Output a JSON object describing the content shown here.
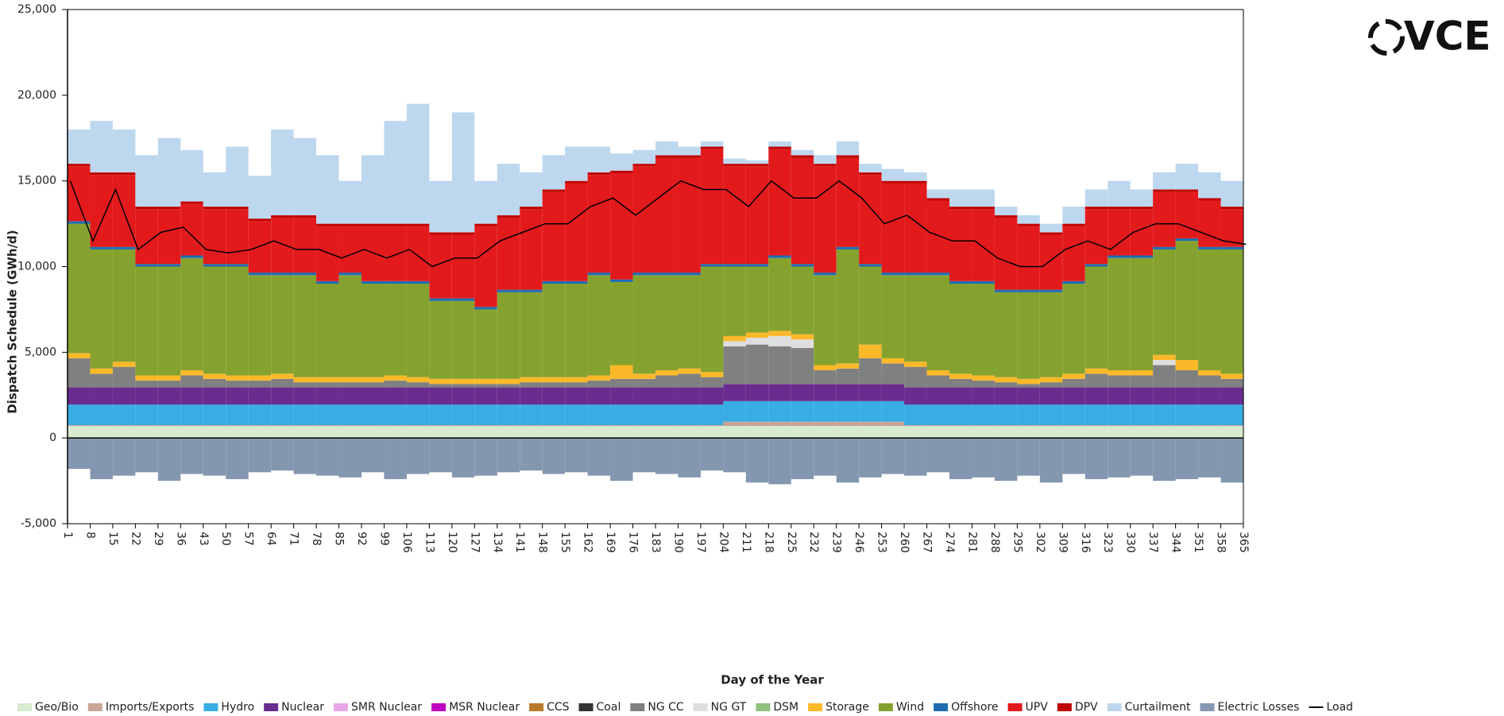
{
  "chart_data": {
    "type": "stacked_bar",
    "xlabel": "Day of the Year",
    "ylabel": "Dispatch Schedule (GWh/d)",
    "logo": "VCE",
    "x": [
      1,
      8,
      15,
      22,
      29,
      36,
      43,
      50,
      57,
      64,
      71,
      78,
      85,
      92,
      99,
      106,
      113,
      120,
      127,
      134,
      141,
      148,
      155,
      162,
      169,
      176,
      183,
      190,
      197,
      204,
      211,
      218,
      225,
      232,
      239,
      246,
      253,
      260,
      267,
      274,
      281,
      288,
      295,
      302,
      309,
      316,
      323,
      330,
      337,
      344,
      351,
      358,
      365
    ],
    "xlim": [
      1,
      365
    ],
    "xticks": [
      1,
      8,
      15,
      22,
      29,
      36,
      43,
      50,
      57,
      64,
      71,
      78,
      85,
      92,
      99,
      106,
      113,
      120,
      127,
      134,
      141,
      148,
      155,
      162,
      169,
      176,
      183,
      190,
      197,
      204,
      211,
      218,
      225,
      232,
      239,
      246,
      253,
      260,
      267,
      274,
      281,
      288,
      295,
      302,
      309,
      316,
      323,
      330,
      337,
      344,
      351,
      358,
      365
    ],
    "ylim": [
      -5000,
      25000
    ],
    "yticks": [
      {
        "value": -5000,
        "label": "-5,000"
      },
      0,
      {
        "value": 5000,
        "label": "5,000"
      },
      {
        "value": 10000,
        "label": "10,000"
      },
      {
        "value": 15000,
        "label": "15,000"
      },
      {
        "value": 20000,
        "label": "20,000"
      },
      {
        "value": 25000,
        "label": "25,000"
      }
    ],
    "series": [
      {
        "name": "Geo/Bio",
        "color": "#d6ebcf",
        "values": [
          700,
          700,
          700,
          700,
          700,
          700,
          700,
          700,
          700,
          700,
          700,
          700,
          700,
          700,
          700,
          700,
          700,
          700,
          700,
          700,
          700,
          700,
          700,
          700,
          700,
          700,
          700,
          700,
          700,
          700,
          700,
          700,
          700,
          700,
          700,
          700,
          700,
          700,
          700,
          700,
          700,
          700,
          700,
          700,
          700,
          700,
          700,
          700,
          700,
          700,
          700,
          700,
          700
        ]
      },
      {
        "name": "Imports/Exports",
        "color": "#c8a596",
        "values": [
          50,
          50,
          50,
          50,
          50,
          50,
          50,
          50,
          50,
          50,
          50,
          50,
          50,
          50,
          50,
          50,
          50,
          50,
          50,
          50,
          50,
          50,
          50,
          50,
          50,
          50,
          50,
          50,
          50,
          250,
          250,
          250,
          250,
          250,
          250,
          250,
          250,
          50,
          50,
          50,
          50,
          50,
          50,
          50,
          50,
          50,
          50,
          50,
          50,
          50,
          50,
          50,
          50
        ]
      },
      {
        "name": "Hydro",
        "color": "#38ace3",
        "values": [
          1200,
          1200,
          1200,
          1200,
          1200,
          1200,
          1200,
          1200,
          1200,
          1200,
          1200,
          1200,
          1200,
          1200,
          1200,
          1200,
          1200,
          1200,
          1200,
          1200,
          1200,
          1200,
          1200,
          1200,
          1200,
          1200,
          1200,
          1200,
          1200,
          1200,
          1200,
          1200,
          1200,
          1200,
          1200,
          1200,
          1200,
          1200,
          1200,
          1200,
          1200,
          1200,
          1200,
          1200,
          1200,
          1200,
          1200,
          1200,
          1200,
          1200,
          1200,
          1200,
          1200
        ]
      },
      {
        "name": "Nuclear",
        "color": "#6a2d8f",
        "values": [
          1000,
          1000,
          1000,
          1000,
          1000,
          1000,
          1000,
          1000,
          1000,
          1000,
          1000,
          1000,
          1000,
          1000,
          1000,
          1000,
          1000,
          1000,
          1000,
          1000,
          1000,
          1000,
          1000,
          1000,
          1000,
          1000,
          1000,
          1000,
          1000,
          1000,
          1000,
          1000,
          1000,
          1000,
          1000,
          1000,
          1000,
          1000,
          1000,
          1000,
          1000,
          1000,
          1000,
          1000,
          1000,
          1000,
          1000,
          1000,
          1000,
          1000,
          1000,
          1000,
          1000
        ]
      },
      {
        "name": "SMR Nuclear",
        "color": "#e8a8e8",
        "values": [
          0,
          0,
          0,
          0,
          0,
          0,
          0,
          0,
          0,
          0,
          0,
          0,
          0,
          0,
          0,
          0,
          0,
          0,
          0,
          0,
          0,
          0,
          0,
          0,
          0,
          0,
          0,
          0,
          0,
          0,
          0,
          0,
          0,
          0,
          0,
          0,
          0,
          0,
          0,
          0,
          0,
          0,
          0,
          0,
          0,
          0,
          0,
          0,
          0,
          0,
          0,
          0,
          0
        ]
      },
      {
        "name": "MSR Nuclear",
        "color": "#c000c0",
        "values": [
          0,
          0,
          0,
          0,
          0,
          0,
          0,
          0,
          0,
          0,
          0,
          0,
          0,
          0,
          0,
          0,
          0,
          0,
          0,
          0,
          0,
          0,
          0,
          0,
          0,
          0,
          0,
          0,
          0,
          0,
          0,
          0,
          0,
          0,
          0,
          0,
          0,
          0,
          0,
          0,
          0,
          0,
          0,
          0,
          0,
          0,
          0,
          0,
          0,
          0,
          0,
          0,
          0
        ]
      },
      {
        "name": "CCS",
        "color": "#b8792a",
        "values": [
          0,
          0,
          0,
          0,
          0,
          0,
          0,
          0,
          0,
          0,
          0,
          0,
          0,
          0,
          0,
          0,
          0,
          0,
          0,
          0,
          0,
          0,
          0,
          0,
          0,
          0,
          0,
          0,
          0,
          0,
          0,
          0,
          0,
          0,
          0,
          0,
          0,
          0,
          0,
          0,
          0,
          0,
          0,
          0,
          0,
          0,
          0,
          0,
          0,
          0,
          0,
          0,
          0
        ]
      },
      {
        "name": "Coal",
        "color": "#333333",
        "values": [
          0,
          0,
          0,
          0,
          0,
          0,
          0,
          0,
          0,
          0,
          0,
          0,
          0,
          0,
          0,
          0,
          0,
          0,
          0,
          0,
          0,
          0,
          0,
          0,
          0,
          0,
          0,
          0,
          0,
          0,
          0,
          0,
          0,
          0,
          0,
          0,
          0,
          0,
          0,
          0,
          0,
          0,
          0,
          0,
          0,
          0,
          0,
          0,
          0,
          0,
          0,
          0,
          0
        ]
      },
      {
        "name": "NG CC",
        "color": "#808080",
        "values": [
          1700,
          800,
          1200,
          400,
          400,
          700,
          500,
          400,
          400,
          500,
          300,
          300,
          300,
          300,
          400,
          300,
          200,
          200,
          200,
          200,
          300,
          300,
          300,
          400,
          500,
          500,
          700,
          800,
          600,
          2200,
          2300,
          2200,
          2100,
          800,
          900,
          1500,
          1200,
          1200,
          700,
          500,
          400,
          300,
          200,
          300,
          500,
          800,
          700,
          700,
          1300,
          1000,
          700,
          500,
          300
        ]
      },
      {
        "name": "NG GT",
        "color": "#dedede",
        "values": [
          0,
          0,
          0,
          0,
          0,
          0,
          0,
          0,
          0,
          0,
          0,
          0,
          0,
          0,
          0,
          0,
          0,
          0,
          0,
          0,
          0,
          0,
          0,
          0,
          0,
          0,
          0,
          0,
          0,
          300,
          400,
          600,
          500,
          0,
          0,
          0,
          0,
          0,
          0,
          0,
          0,
          0,
          0,
          0,
          0,
          0,
          0,
          0,
          300,
          0,
          0,
          0,
          0
        ]
      },
      {
        "name": "DSM",
        "color": "#8fc07f",
        "values": [
          0,
          0,
          0,
          0,
          0,
          0,
          0,
          0,
          0,
          0,
          0,
          0,
          0,
          0,
          0,
          0,
          0,
          0,
          0,
          0,
          0,
          0,
          0,
          0,
          0,
          0,
          0,
          0,
          0,
          0,
          0,
          0,
          0,
          0,
          0,
          0,
          0,
          0,
          0,
          0,
          0,
          0,
          0,
          0,
          0,
          0,
          0,
          0,
          0,
          0,
          0,
          0,
          0
        ]
      },
      {
        "name": "Storage",
        "color": "#fbb829",
        "values": [
          300,
          300,
          300,
          300,
          300,
          300,
          300,
          300,
          300,
          300,
          300,
          300,
          300,
          300,
          300,
          300,
          300,
          300,
          300,
          300,
          300,
          300,
          300,
          300,
          800,
          300,
          300,
          300,
          300,
          300,
          300,
          300,
          300,
          300,
          300,
          800,
          300,
          300,
          300,
          300,
          300,
          300,
          300,
          300,
          300,
          300,
          300,
          300,
          300,
          600,
          300,
          300,
          300
        ]
      },
      {
        "name": "Wind",
        "color": "#86a22e",
        "values": [
          7550,
          6950,
          6550,
          6350,
          6350,
          6550,
          6250,
          6350,
          5850,
          5750,
          5950,
          5450,
          5950,
          5450,
          5350,
          5450,
          4550,
          4550,
          4050,
          5050,
          4950,
          5450,
          5450,
          5850,
          4850,
          5750,
          5550,
          5450,
          6150,
          4050,
          3850,
          4250,
          3950,
          5250,
          6650,
          4550,
          4850,
          5050,
          5550,
          5250,
          5350,
          4950,
          5050,
          4950,
          5250,
          5950,
          6550,
          6550,
          6150,
          6950,
          7050,
          7250,
          7950
        ]
      },
      {
        "name": "Offshore",
        "color": "#1f6db0",
        "values": [
          150,
          150,
          150,
          150,
          150,
          150,
          150,
          150,
          150,
          150,
          150,
          150,
          150,
          150,
          150,
          150,
          150,
          150,
          150,
          150,
          150,
          150,
          150,
          150,
          150,
          150,
          150,
          150,
          150,
          150,
          150,
          150,
          150,
          150,
          150,
          150,
          150,
          150,
          150,
          150,
          150,
          150,
          150,
          150,
          150,
          150,
          150,
          150,
          150,
          150,
          150,
          150,
          150
        ]
      },
      {
        "name": "UPV",
        "color": "#e31a1c",
        "values": [
          3200,
          4200,
          4200,
          3200,
          3200,
          3000,
          3200,
          3200,
          3000,
          3200,
          3200,
          3200,
          2700,
          3200,
          3200,
          3200,
          3700,
          3700,
          4700,
          4200,
          4700,
          5200,
          5700,
          5700,
          6200,
          6200,
          6700,
          6700,
          6700,
          5700,
          5700,
          6200,
          6200,
          6200,
          5200,
          5200,
          5200,
          5200,
          4200,
          4200,
          4200,
          4200,
          3700,
          3200,
          3200,
          3200,
          2700,
          2700,
          3200,
          2700,
          2700,
          2200,
          2700
        ]
      },
      {
        "name": "DPV",
        "color": "#c00000",
        "values": [
          150,
          150,
          150,
          150,
          150,
          150,
          150,
          150,
          150,
          150,
          150,
          150,
          150,
          150,
          150,
          150,
          150,
          150,
          150,
          150,
          150,
          150,
          150,
          150,
          150,
          150,
          150,
          150,
          150,
          150,
          150,
          150,
          150,
          150,
          150,
          150,
          150,
          150,
          150,
          150,
          150,
          150,
          150,
          150,
          150,
          150,
          150,
          150,
          150,
          150,
          150,
          150,
          150
        ]
      },
      {
        "name": "Curtailment",
        "color": "#bdd7ee",
        "values": [
          2000,
          3000,
          2500,
          3000,
          4000,
          3000,
          2000,
          3500,
          2500,
          5000,
          4500,
          4000,
          2500,
          4000,
          6000,
          7000,
          3000,
          7000,
          2500,
          3000,
          2000,
          2000,
          2000,
          1500,
          1000,
          800,
          800,
          500,
          300,
          300,
          200,
          300,
          300,
          500,
          800,
          500,
          700,
          500,
          500,
          1000,
          1000,
          500,
          500,
          500,
          1000,
          1000,
          1500,
          1000,
          1000,
          1500,
          1500,
          1500,
          2500
        ]
      },
      {
        "name": "Electric Losses",
        "color": "#8497b0",
        "values": [
          -1800,
          -2400,
          -2200,
          -2000,
          -2500,
          -2100,
          -2200,
          -2400,
          -2000,
          -1900,
          -2100,
          -2200,
          -2300,
          -2000,
          -2400,
          -2100,
          -2000,
          -2300,
          -2200,
          -2000,
          -1900,
          -2100,
          -2000,
          -2200,
          -2500,
          -2000,
          -2100,
          -2300,
          -1900,
          -2000,
          -2600,
          -2700,
          -2400,
          -2200,
          -2600,
          -2300,
          -2100,
          -2200,
          -2000,
          -2400,
          -2300,
          -2500,
          -2200,
          -2600,
          -2100,
          -2400,
          -2300,
          -2200,
          -2500,
          -2400,
          -2300,
          -2600,
          -2200
        ]
      }
    ],
    "load": {
      "name": "Load",
      "color": "#000000",
      "values": [
        15000,
        11500,
        14500,
        11000,
        12000,
        12300,
        11000,
        10800,
        11000,
        11500,
        11000,
        11000,
        10500,
        11000,
        10500,
        11000,
        10000,
        10500,
        10500,
        11500,
        12000,
        12500,
        12500,
        13500,
        14000,
        13000,
        14000,
        15000,
        14500,
        14500,
        13500,
        15000,
        14000,
        14000,
        15000,
        14000,
        12500,
        13000,
        12000,
        11500,
        11500,
        10500,
        10000,
        10000,
        11000,
        11500,
        11000,
        12000,
        12500,
        12500,
        12000,
        11500,
        11300
      ]
    }
  }
}
